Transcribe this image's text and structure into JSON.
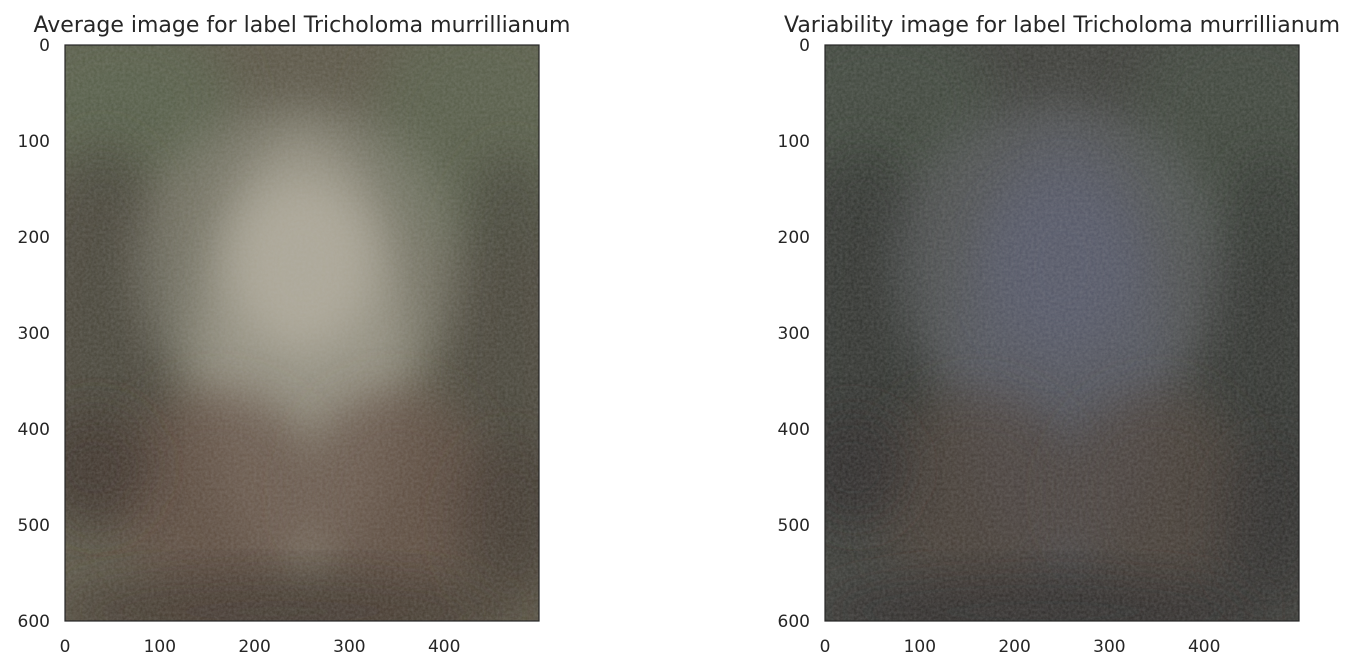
{
  "chart_data": [
    {
      "type": "image",
      "title": "Average image for label Tricholoma murrillianum",
      "xlim": [
        0,
        500
      ],
      "ylim": [
        600,
        0
      ],
      "x_ticks": [
        0,
        100,
        200,
        300,
        400
      ],
      "y_ticks": [
        0,
        100,
        200,
        300,
        400,
        500,
        600
      ],
      "grid": false,
      "palette": {
        "base": "#5b5646",
        "edge": "#3e3a30",
        "green": "#56614a",
        "glow": "#b4ae9e",
        "halo": "#8a8a7a",
        "brown": "#5e4a3e",
        "dark": "#3a2e28"
      }
    },
    {
      "type": "image",
      "title": "Variability image for label Tricholoma murrillianum",
      "xlim": [
        0,
        500
      ],
      "ylim": [
        600,
        0
      ],
      "x_ticks": [
        0,
        100,
        200,
        300,
        400
      ],
      "y_ticks": [
        0,
        100,
        200,
        300,
        400,
        500,
        600
      ],
      "grid": false,
      "palette": {
        "base": "#3c3d38",
        "edge": "#2c2d29",
        "green": "#3f4a3c",
        "glow": "#55596a",
        "halo": "#5f6266",
        "brown": "#4a3c36",
        "dark": "#2c2826"
      }
    }
  ]
}
